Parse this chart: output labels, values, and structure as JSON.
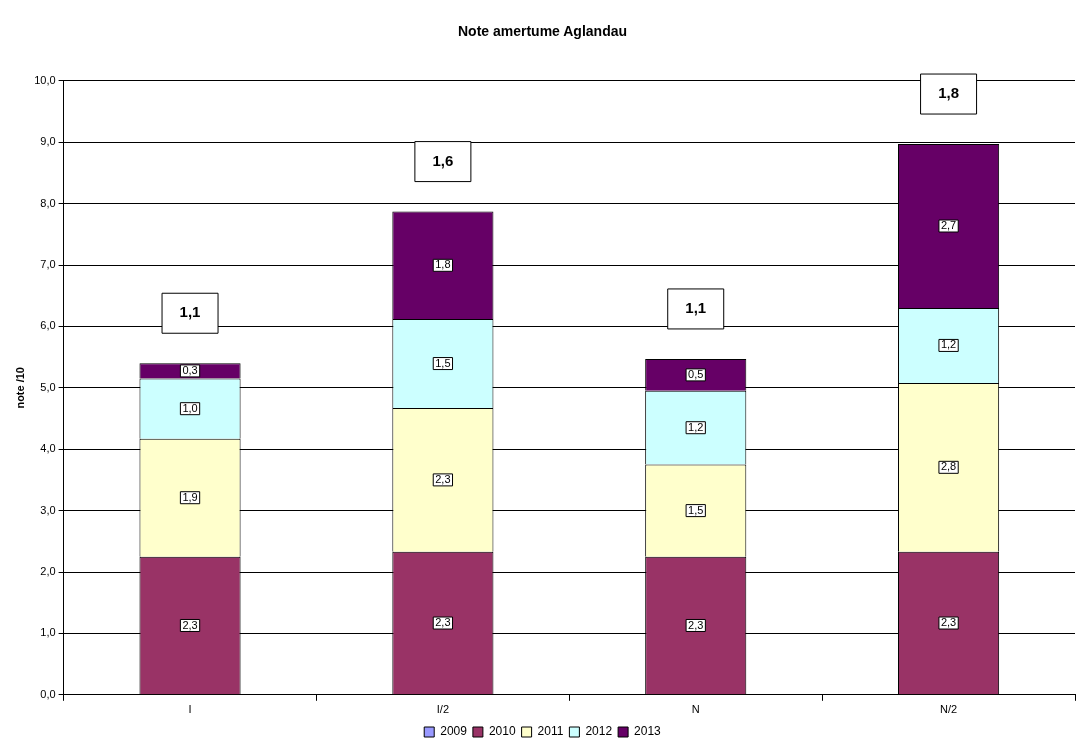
{
  "chart_data": {
    "type": "bar",
    "title": "Note amertume Aglandau",
    "ylabel": "note /10",
    "categories": [
      "I",
      "I/2",
      "N",
      "N/2"
    ],
    "stacked": true,
    "ylim": [
      0,
      10
    ],
    "yticks": [
      {
        "value": 0,
        "label": "0,0"
      },
      {
        "value": 1,
        "label": "1,0"
      },
      {
        "value": 2,
        "label": "2,0"
      },
      {
        "value": 3,
        "label": "3,0"
      },
      {
        "value": 4,
        "label": "4,0"
      },
      {
        "value": 5,
        "label": "5,0"
      },
      {
        "value": 6,
        "label": "6,0"
      },
      {
        "value": 7,
        "label": "7,0"
      },
      {
        "value": 8,
        "label": "8,0"
      },
      {
        "value": 9,
        "label": "9,0"
      },
      {
        "value": 10,
        "label": "10,0"
      }
    ],
    "series": [
      {
        "name": "2009",
        "color": "#9999ff",
        "values": [
          null,
          null,
          null,
          null
        ],
        "value_labels": [
          null,
          null,
          null,
          null
        ]
      },
      {
        "name": "2010",
        "color": "#993366",
        "values": [
          2.25,
          2.33,
          2.25,
          2.33
        ],
        "value_labels": [
          "2,3",
          "2,3",
          "2,3",
          "2,3"
        ]
      },
      {
        "name": "2011",
        "color": "#ffffcc",
        "values": [
          1.92,
          2.34,
          1.5,
          2.75
        ],
        "value_labels": [
          "1,9",
          "2,3",
          "1,5",
          "2,8"
        ]
      },
      {
        "name": "2012",
        "color": "#ccffff",
        "values": [
          0.98,
          1.45,
          1.2,
          1.22
        ],
        "value_labels": [
          "1,0",
          "1,5",
          "1,2",
          "1,2"
        ]
      },
      {
        "name": "2013",
        "color": "#660066",
        "values": [
          0.25,
          1.75,
          0.52,
          2.67
        ],
        "value_labels": [
          "0,3",
          "1,8",
          "0,5",
          "2,7"
        ]
      }
    ],
    "annotations": [
      "1,1",
      "1,6",
      "1,1",
      "1,8"
    ],
    "grid": "y",
    "legend": "bottom"
  }
}
